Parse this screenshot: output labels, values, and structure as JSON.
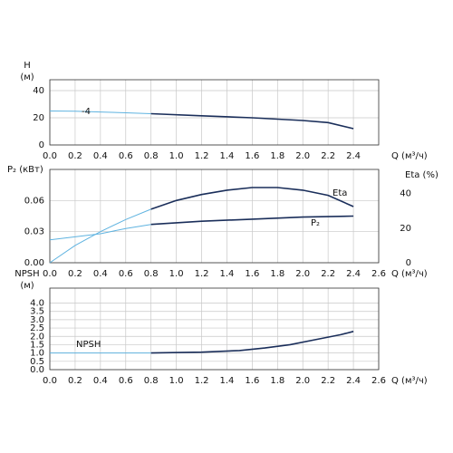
{
  "chart_data": [
    {
      "type": "line",
      "y_title": "H",
      "y_unit": "(м)",
      "x_title": "Q (м³/ч)",
      "xlim": [
        0,
        2.6
      ],
      "xticks": [
        {
          "value": 0,
          "label": "0.0"
        },
        0.2,
        0.4,
        0.6,
        0.8,
        {
          "value": 1,
          "label": "1.0"
        },
        1.2,
        1.4,
        1.6,
        1.8,
        {
          "value": 2,
          "label": "2.0"
        },
        2.2,
        2.4
      ],
      "ylim": [
        0,
        48
      ],
      "yticks": [
        0,
        20,
        40
      ],
      "grid": true,
      "annotation": "-4",
      "series": [
        {
          "color": "#5fb3e0",
          "x": [
            0,
            0.2,
            0.4,
            0.6,
            0.8
          ],
          "values": [
            25,
            24.8,
            24.3,
            23.7,
            23
          ]
        },
        {
          "color": "#1a2e5a",
          "x": [
            0.8,
            1.2,
            1.6,
            2.0,
            2.2,
            2.4
          ],
          "values": [
            23,
            21.5,
            20,
            18,
            16.5,
            12
          ]
        }
      ]
    },
    {
      "type": "line",
      "y_title": "P₂ (кВт)",
      "y2_title": "Eta (%)",
      "x_title": "Q (м³/ч)",
      "xlim": [
        0,
        2.6
      ],
      "xticks": [
        {
          "value": 0,
          "label": "0.0"
        },
        0.2,
        0.4,
        0.6,
        0.8,
        {
          "value": 1,
          "label": "1.0"
        },
        1.2,
        1.4,
        1.6,
        1.8,
        {
          "value": 2,
          "label": "2.0"
        },
        2.2,
        2.4,
        2.6
      ],
      "ylim": [
        0,
        0.09
      ],
      "yticks": [
        {
          "value": 0,
          "label": "0.00"
        },
        0.03,
        0.06
      ],
      "y2lim": [
        0,
        54
      ],
      "y2ticks": [
        0,
        20,
        40
      ],
      "grid": true,
      "series": [
        {
          "name": "Eta",
          "axis": "y2",
          "color": "#5fb3e0",
          "x": [
            0,
            0.2,
            0.4,
            0.6,
            0.8
          ],
          "values": [
            0,
            10,
            18,
            25,
            31
          ]
        },
        {
          "axis": "y2",
          "color": "#1a2e5a",
          "x": [
            0.8,
            1.0,
            1.2,
            1.4,
            1.6,
            1.8,
            2.0,
            2.2,
            2.4
          ],
          "values": [
            31,
            36,
            39.5,
            42,
            43.5,
            43.5,
            42,
            39,
            32.5
          ]
        },
        {
          "name": "P₂",
          "color": "#5fb3e0",
          "x": [
            0,
            0.2,
            0.4,
            0.6,
            0.8
          ],
          "values": [
            0.022,
            0.025,
            0.028,
            0.033,
            0.037
          ]
        },
        {
          "color": "#1a2e5a",
          "x": [
            0.8,
            1.2,
            1.6,
            2.0,
            2.4
          ],
          "values": [
            0.037,
            0.04,
            0.042,
            0.044,
            0.045
          ]
        }
      ]
    },
    {
      "type": "line",
      "y_title": "NPSH",
      "y_unit": "(м)",
      "x_title": "Q (м³/ч)",
      "xlim": [
        0,
        2.6
      ],
      "xticks": [
        {
          "value": 0,
          "label": "0.0"
        },
        0.2,
        0.4,
        0.6,
        0.8,
        {
          "value": 1,
          "label": "1.0"
        },
        1.2,
        1.4,
        1.6,
        1.8,
        {
          "value": 2,
          "label": "2.0"
        },
        2.2,
        2.4,
        2.6
      ],
      "ylim": [
        0,
        4.9
      ],
      "yticks": [
        {
          "value": 0,
          "label": "0.0"
        },
        0.5,
        {
          "value": 1,
          "label": "1.0"
        },
        1.5,
        {
          "value": 2,
          "label": "2.0"
        },
        2.5,
        {
          "value": 3,
          "label": "3.0"
        },
        3.5,
        {
          "value": 4,
          "label": "4.0"
        }
      ],
      "grid": true,
      "annotation": "NPSH",
      "series": [
        {
          "color": "#5fb3e0",
          "x": [
            0,
            0.4,
            0.8
          ],
          "values": [
            1,
            1,
            1
          ]
        },
        {
          "color": "#1a2e5a",
          "x": [
            0.8,
            1.2,
            1.5,
            1.7,
            1.9,
            2.1,
            2.3,
            2.4
          ],
          "values": [
            1,
            1.05,
            1.15,
            1.3,
            1.5,
            1.8,
            2.1,
            2.3
          ]
        }
      ]
    }
  ]
}
